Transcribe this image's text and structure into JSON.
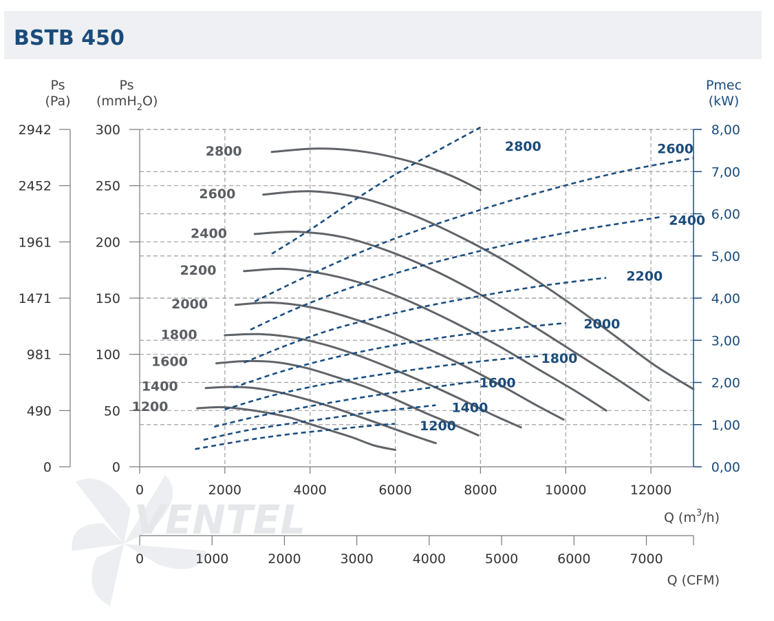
{
  "title": "BSTB 450",
  "watermark": "VENTEL",
  "colors": {
    "title": "#1b4b7a",
    "pressure_curves": "#606368",
    "power_curves": "#1a4e80",
    "grid": "#a0a0a0",
    "header_band": "#eef0f3"
  },
  "left_axis": {
    "pa_title_line1": "Ps",
    "pa_title_line2": "(Pa)",
    "mmh2o_title_line1": "Ps",
    "mmh2o_title_line2_a": "(mmH",
    "mmh2o_title_line2_sub": "2",
    "mmh2o_title_line2_b": "O)"
  },
  "right_axis": {
    "title_line1": "Pmec",
    "title_line2": "(kW)"
  },
  "bottom_axis": {
    "m3h_label_a": "Q (m",
    "m3h_label_sup": "3",
    "m3h_label_b": "/h)",
    "cfm_label": "Q (CFM)"
  },
  "chart_data": {
    "type": "line",
    "x_m3h": {
      "range": [
        0,
        13000
      ],
      "ticks": [
        0,
        2000,
        4000,
        6000,
        8000,
        10000,
        12000
      ],
      "tick_labels": [
        "0",
        "2000",
        "4000",
        "6000",
        "8000",
        "10000",
        "12000"
      ]
    },
    "x_cfm": {
      "range": [
        0,
        7651
      ],
      "ticks": [
        0,
        1000,
        2000,
        3000,
        4000,
        5000,
        6000,
        7000
      ],
      "tick_labels": [
        "0",
        "1000",
        "2000",
        "3000",
        "4000",
        "5000",
        "6000",
        "7000"
      ]
    },
    "y_mmh2o": {
      "range": [
        0,
        300
      ],
      "ticks": [
        0,
        50,
        100,
        150,
        200,
        250,
        300
      ],
      "tick_labels": [
        "0",
        "50",
        "100",
        "150",
        "200",
        "250",
        "300"
      ]
    },
    "y_pa": {
      "tick_labels": [
        "0",
        "490",
        "981",
        "1471",
        "1961",
        "2452",
        "2942"
      ]
    },
    "y_kw": {
      "range": [
        0,
        8
      ],
      "ticks": [
        0,
        1,
        2,
        3,
        4,
        5,
        6,
        7,
        8
      ],
      "tick_labels": [
        "0,00",
        "1,00",
        "2,00",
        "3,00",
        "4,00",
        "5,00",
        "6,00",
        "7,00",
        "8,00"
      ]
    },
    "grid": true,
    "pressure_series": [
      {
        "name": "1200",
        "points": [
          [
            1350,
            52
          ],
          [
            1900,
            53
          ],
          [
            2500,
            51
          ],
          [
            3000,
            48
          ],
          [
            3500,
            44
          ],
          [
            4000,
            38
          ],
          [
            4500,
            32
          ],
          [
            5000,
            26
          ],
          [
            5500,
            19
          ],
          [
            6000,
            15
          ]
        ]
      },
      {
        "name": "1400",
        "points": [
          [
            1550,
            70
          ],
          [
            2100,
            71
          ],
          [
            2700,
            70
          ],
          [
            3300,
            66
          ],
          [
            4000,
            59
          ],
          [
            4600,
            52
          ],
          [
            5200,
            44
          ],
          [
            5800,
            36
          ],
          [
            6400,
            28
          ],
          [
            6950,
            21
          ]
        ]
      },
      {
        "name": "1600",
        "points": [
          [
            1800,
            92
          ],
          [
            2500,
            94
          ],
          [
            3200,
            93
          ],
          [
            3900,
            88
          ],
          [
            4600,
            80
          ],
          [
            5300,
            71
          ],
          [
            6000,
            60
          ],
          [
            6700,
            48
          ],
          [
            7400,
            37
          ],
          [
            7950,
            28
          ]
        ]
      },
      {
        "name": "1800",
        "points": [
          [
            2000,
            117
          ],
          [
            2800,
            118
          ],
          [
            3600,
            115
          ],
          [
            4400,
            108
          ],
          [
            5200,
            98
          ],
          [
            6000,
            86
          ],
          [
            6800,
            73
          ],
          [
            7600,
            59
          ],
          [
            8300,
            46
          ],
          [
            8950,
            35
          ]
        ]
      },
      {
        "name": "2000",
        "points": [
          [
            2250,
            144
          ],
          [
            3100,
            146
          ],
          [
            4000,
            142
          ],
          [
            4900,
            133
          ],
          [
            5800,
            121
          ],
          [
            6700,
            106
          ],
          [
            7600,
            90
          ],
          [
            8500,
            72
          ],
          [
            9300,
            55
          ],
          [
            9950,
            42
          ]
        ]
      },
      {
        "name": "2200",
        "points": [
          [
            2450,
            174
          ],
          [
            3400,
            176
          ],
          [
            4400,
            171
          ],
          [
            5400,
            161
          ],
          [
            6400,
            146
          ],
          [
            7400,
            128
          ],
          [
            8400,
            108
          ],
          [
            9300,
            88
          ],
          [
            10200,
            68
          ],
          [
            10950,
            50
          ]
        ]
      },
      {
        "name": "2400",
        "points": [
          [
            2700,
            207
          ],
          [
            3700,
            209
          ],
          [
            4800,
            204
          ],
          [
            5900,
            191
          ],
          [
            7000,
            173
          ],
          [
            8100,
            151
          ],
          [
            9200,
            126
          ],
          [
            10200,
            102
          ],
          [
            11200,
            78
          ],
          [
            11950,
            59
          ]
        ]
      },
      {
        "name": "2600",
        "points": [
          [
            2900,
            242
          ],
          [
            4000,
            245
          ],
          [
            5200,
            239
          ],
          [
            6400,
            224
          ],
          [
            7600,
            203
          ],
          [
            8800,
            178
          ],
          [
            10000,
            148
          ],
          [
            11100,
            118
          ],
          [
            12100,
            90
          ],
          [
            13000,
            69
          ]
        ]
      },
      {
        "name": "2800",
        "points": [
          [
            3100,
            280
          ],
          [
            4200,
            283
          ],
          [
            5300,
            280
          ],
          [
            6400,
            271
          ],
          [
            7300,
            259
          ],
          [
            8000,
            246
          ]
        ]
      }
    ],
    "power_series": [
      {
        "name": "1200",
        "points": [
          [
            1300,
            0.42
          ],
          [
            2500,
            0.63
          ],
          [
            3500,
            0.77
          ],
          [
            4500,
            0.88
          ],
          [
            5500,
            0.98
          ],
          [
            6000,
            1.02
          ]
        ]
      },
      {
        "name": "1400",
        "points": [
          [
            1500,
            0.64
          ],
          [
            2500,
            0.86
          ],
          [
            3500,
            1.02
          ],
          [
            4500,
            1.16
          ],
          [
            5500,
            1.3
          ],
          [
            6500,
            1.41
          ],
          [
            6950,
            1.46
          ]
        ]
      },
      {
        "name": "1600",
        "points": [
          [
            1750,
            0.95
          ],
          [
            2700,
            1.18
          ],
          [
            3700,
            1.38
          ],
          [
            4700,
            1.56
          ],
          [
            5700,
            1.72
          ],
          [
            6700,
            1.86
          ],
          [
            7500,
            1.97
          ],
          [
            7950,
            2.03
          ]
        ]
      },
      {
        "name": "1800",
        "points": [
          [
            2000,
            1.36
          ],
          [
            3000,
            1.66
          ],
          [
            4000,
            1.89
          ],
          [
            5000,
            2.08
          ],
          [
            6000,
            2.24
          ],
          [
            7000,
            2.38
          ],
          [
            8000,
            2.5
          ],
          [
            9000,
            2.6
          ],
          [
            9350,
            2.62
          ]
        ]
      },
      {
        "name": "2000",
        "points": [
          [
            2200,
            1.88
          ],
          [
            3200,
            2.22
          ],
          [
            4200,
            2.5
          ],
          [
            5200,
            2.73
          ],
          [
            6200,
            2.92
          ],
          [
            7200,
            3.08
          ],
          [
            8200,
            3.21
          ],
          [
            9200,
            3.33
          ],
          [
            10000,
            3.41
          ]
        ]
      },
      {
        "name": "2200",
        "points": [
          [
            2450,
            2.47
          ],
          [
            3500,
            2.9
          ],
          [
            4500,
            3.25
          ],
          [
            5500,
            3.52
          ],
          [
            6500,
            3.76
          ],
          [
            7500,
            3.96
          ],
          [
            8500,
            4.14
          ],
          [
            9500,
            4.3
          ],
          [
            10500,
            4.43
          ],
          [
            10950,
            4.48
          ]
        ]
      },
      {
        "name": "2400",
        "points": [
          [
            2600,
            3.25
          ],
          [
            3600,
            3.72
          ],
          [
            4600,
            4.12
          ],
          [
            5600,
            4.46
          ],
          [
            6600,
            4.76
          ],
          [
            7600,
            5.02
          ],
          [
            8600,
            5.26
          ],
          [
            9600,
            5.47
          ],
          [
            10600,
            5.66
          ],
          [
            11600,
            5.82
          ],
          [
            12200,
            5.92
          ]
        ]
      },
      {
        "name": "2600",
        "points": [
          [
            2700,
            3.92
          ],
          [
            3800,
            4.46
          ],
          [
            4800,
            4.92
          ],
          [
            5800,
            5.34
          ],
          [
            6800,
            5.7
          ],
          [
            7800,
            6.03
          ],
          [
            8800,
            6.34
          ],
          [
            9800,
            6.62
          ],
          [
            10800,
            6.88
          ],
          [
            11800,
            7.1
          ],
          [
            13000,
            7.32
          ]
        ]
      },
      {
        "name": "2800",
        "points": [
          [
            3100,
            5.05
          ],
          [
            4000,
            5.62
          ],
          [
            5000,
            6.3
          ],
          [
            6000,
            6.93
          ],
          [
            7000,
            7.5
          ],
          [
            8000,
            8.05
          ]
        ]
      }
    ],
    "pressure_labels": [
      {
        "text": "1200",
        "x": 670,
        "y": 54
      },
      {
        "text": "1400",
        "x": 900,
        "y": 72
      },
      {
        "text": "1600",
        "x": 1130,
        "y": 94
      },
      {
        "text": "1800",
        "x": 1350,
        "y": 118
      },
      {
        "text": "2000",
        "x": 1600,
        "y": 145
      },
      {
        "text": "2200",
        "x": 1800,
        "y": 175
      },
      {
        "text": "2400",
        "x": 2050,
        "y": 208
      },
      {
        "text": "2600",
        "x": 2250,
        "y": 243
      },
      {
        "text": "2800",
        "x": 2400,
        "y": 281
      }
    ],
    "power_labels": [
      {
        "text": "1200",
        "x": 7000,
        "y": 0.98
      },
      {
        "text": "1400",
        "x": 7750,
        "y": 1.41
      },
      {
        "text": "1600",
        "x": 8400,
        "y": 2.0
      },
      {
        "text": "1800",
        "x": 9850,
        "y": 2.58
      },
      {
        "text": "2000",
        "x": 10850,
        "y": 3.4
      },
      {
        "text": "2200",
        "x": 11850,
        "y": 4.53
      },
      {
        "text": "2400",
        "x": 12850,
        "y": 5.85
      },
      {
        "text": "2600",
        "x": 13000,
        "y": 7.55
      },
      {
        "text": "2800",
        "x": 9000,
        "y": 7.61
      }
    ]
  }
}
